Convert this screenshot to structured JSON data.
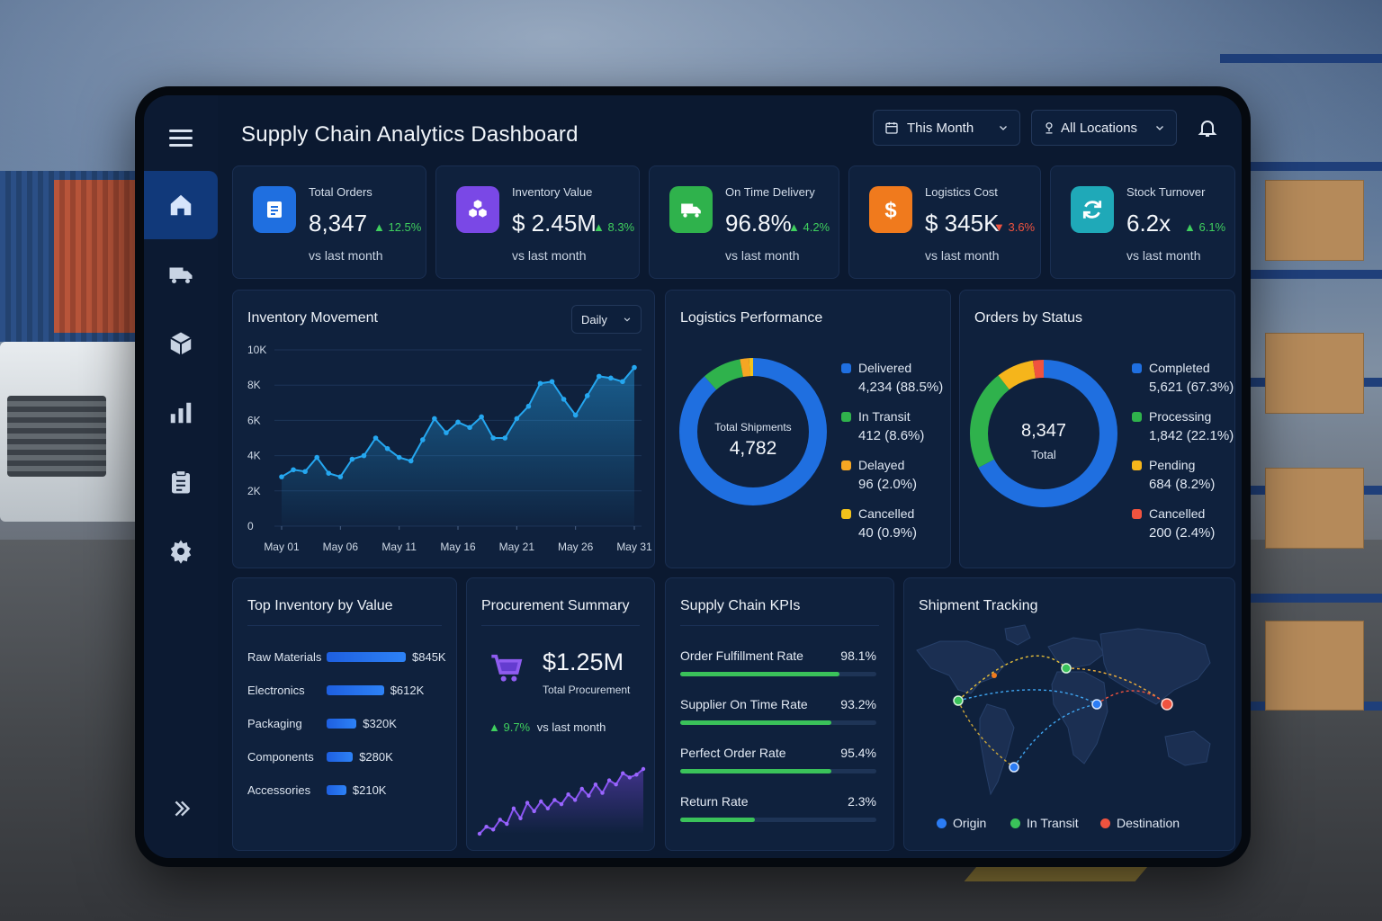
{
  "header": {
    "title": "Supply Chain Analytics Dashboard",
    "period_select": "This Month",
    "location_select": "All Locations"
  },
  "sidebar": {
    "items": [
      {
        "name": "home",
        "icon": "home-icon",
        "active": true
      },
      {
        "name": "shipments",
        "icon": "truck-icon",
        "active": false
      },
      {
        "name": "inventory",
        "icon": "box-icon",
        "active": false
      },
      {
        "name": "analytics",
        "icon": "bar-chart-icon",
        "active": false
      },
      {
        "name": "reports",
        "icon": "clipboard-icon",
        "active": false
      },
      {
        "name": "settings",
        "icon": "gear-icon",
        "active": false
      }
    ]
  },
  "kpis": [
    {
      "label": "Total Orders",
      "value": "8,347",
      "change": "12.5%",
      "direction": "up",
      "sub": "vs last month",
      "icon": "document-icon",
      "color": "#1f6fe0"
    },
    {
      "label": "Inventory Value",
      "value": "$ 2.45M",
      "change": "8.3%",
      "direction": "up",
      "sub": "vs last month",
      "icon": "cubes-icon",
      "color": "#7a48e6"
    },
    {
      "label": "On Time Delivery",
      "value": "96.8%",
      "change": "4.2%",
      "direction": "up",
      "sub": "vs last month",
      "icon": "truck-icon",
      "color": "#2fb24c"
    },
    {
      "label": "Logistics Cost",
      "value": "$ 345K",
      "change": "3.6%",
      "direction": "down",
      "sub": "vs last month",
      "icon": "dollar-icon",
      "color": "#f07a1d"
    },
    {
      "label": "Stock Turnover",
      "value": "6.2x",
      "change": "6.1%",
      "direction": "up",
      "sub": "vs last month",
      "icon": "refresh-icon",
      "color": "#1fa9b8"
    }
  ],
  "inventory_movement": {
    "title": "Inventory Movement",
    "granularity": "Daily"
  },
  "logistics": {
    "title": "Logistics Performance",
    "center_label": "Total Shipments",
    "center_value": "4,782",
    "legend": [
      {
        "name": "Delivered",
        "value": "4,234 (88.5%)",
        "color": "#1f6fe0"
      },
      {
        "name": "In Transit",
        "value": "412 (8.6%)",
        "color": "#2fb24c"
      },
      {
        "name": "Delayed",
        "value": "96 (2.0%)",
        "color": "#f5a623"
      },
      {
        "name": "Cancelled",
        "value": "40 (0.9%)",
        "color": "#f2c21b"
      }
    ]
  },
  "orders_status": {
    "title": "Orders by Status",
    "center_value": "8,347",
    "center_label": "Total",
    "legend": [
      {
        "name": "Completed",
        "value": "5,621 (67.3%)",
        "color": "#1f6fe0"
      },
      {
        "name": "Processing",
        "value": "1,842 (22.1%)",
        "color": "#2fb24c"
      },
      {
        "name": "Pending",
        "value": "684 (8.2%)",
        "color": "#f5b51b"
      },
      {
        "name": "Cancelled",
        "value": "200 (2.4%)",
        "color": "#f0533f"
      }
    ]
  },
  "top_inventory": {
    "title": "Top Inventory by Value",
    "items": [
      {
        "name": "Raw Materials",
        "value": "$845K",
        "amount": 845
      },
      {
        "name": "Electronics",
        "value": "$612K",
        "amount": 612
      },
      {
        "name": "Packaging",
        "value": "$320K",
        "amount": 320
      },
      {
        "name": "Components",
        "value": "$280K",
        "amount": 280
      },
      {
        "name": "Accessories",
        "value": "$210K",
        "amount": 210
      }
    ]
  },
  "procurement": {
    "title": "Procurement Summary",
    "value": "$1.25M",
    "label": "Total Procurement",
    "change": "9.7%",
    "change_sub": "vs last month",
    "sparkline": [
      2,
      3,
      2.6,
      4,
      3.4,
      5.6,
      4.2,
      6.4,
      5.2,
      6.6,
      5.6,
      6.8,
      6.2,
      7.6,
      6.8,
      8.4,
      7.4,
      9,
      7.8,
      9.6,
      9,
      10.6,
      10,
      10.4,
      11.2
    ]
  },
  "sc_kpis": {
    "title": "Supply Chain KPIs",
    "items": [
      {
        "name": "Order Fulfillment Rate",
        "value": "98.1%",
        "fill": 0.81
      },
      {
        "name": "Supplier On Time Rate",
        "value": "93.2%",
        "fill": 0.77
      },
      {
        "name": "Perfect Order Rate",
        "value": "95.4%",
        "fill": 0.77
      },
      {
        "name": "Return Rate",
        "value": "2.3%",
        "fill": 0.38
      }
    ]
  },
  "shipment": {
    "title": "Shipment Tracking",
    "legend": [
      {
        "name": "Origin",
        "color": "#2b7cf4"
      },
      {
        "name": "In Transit",
        "color": "#3ac25a"
      },
      {
        "name": "Destination",
        "color": "#f0533f"
      }
    ]
  },
  "chart_data": {
    "type": "area",
    "x": [
      "May 01",
      "May 02",
      "May 03",
      "May 04",
      "May 05",
      "May 06",
      "May 07",
      "May 08",
      "May 09",
      "May 10",
      "May 11",
      "May 12",
      "May 13",
      "May 14",
      "May 15",
      "May 16",
      "May 17",
      "May 18",
      "May 19",
      "May 20",
      "May 21",
      "May 22",
      "May 23",
      "May 24",
      "May 25",
      "May 26",
      "May 27",
      "May 28",
      "May 29",
      "May 30",
      "May 31"
    ],
    "values": [
      2800,
      3200,
      3100,
      3900,
      3000,
      2800,
      3800,
      4000,
      5000,
      4400,
      3900,
      3700,
      4900,
      6100,
      5300,
      5900,
      5600,
      6200,
      5000,
      5000,
      6100,
      6800,
      8100,
      8200,
      7200,
      6300,
      7400,
      8500,
      8400,
      8200,
      9000
    ],
    "x_ticks": [
      "May 01",
      "May 06",
      "May 11",
      "May 16",
      "May 21",
      "May 26",
      "May 31"
    ],
    "y_ticks": [
      "0",
      "2K",
      "4K",
      "6K",
      "8K",
      "10K"
    ],
    "ylim": [
      0,
      10000
    ],
    "grid": true,
    "color": "#25a7f0"
  }
}
